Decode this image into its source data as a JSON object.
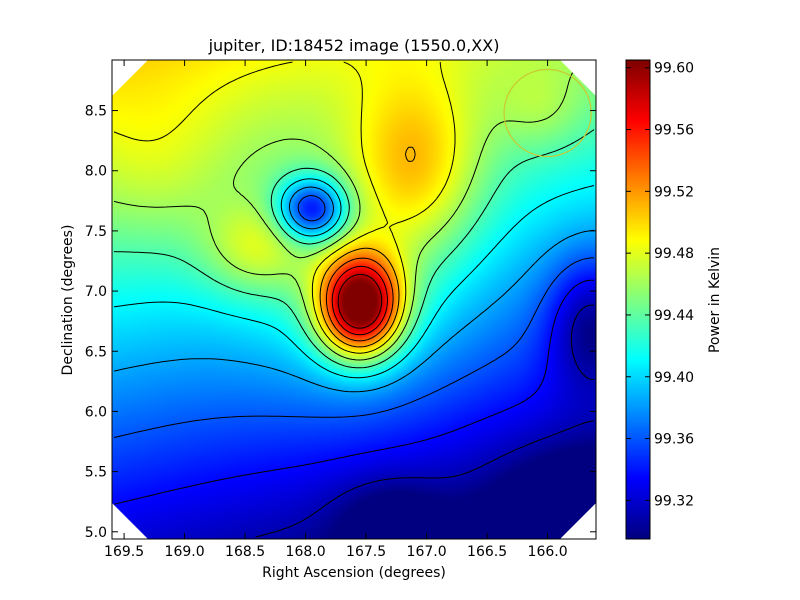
{
  "chart_data": {
    "type": "heatmap",
    "title": "jupiter, ID:18452 image (1550.0,XX)",
    "xlabel": "Right Ascension (degrees)",
    "ylabel": "Declination (degrees)",
    "xlim": [
      169.6,
      165.6
    ],
    "ylim": [
      4.94,
      8.92
    ],
    "x_ticks": [
      169.5,
      169.0,
      168.5,
      168.0,
      167.5,
      167.0,
      166.5,
      166.0
    ],
    "x_tick_labels": [
      "169.5",
      "169.0",
      "168.5",
      "168.0",
      "167.5",
      "167.0",
      "166.5",
      "166.0"
    ],
    "y_ticks": [
      5.0,
      5.5,
      6.0,
      6.5,
      7.0,
      7.5,
      8.0,
      8.5
    ],
    "y_tick_labels": [
      "5.0",
      "5.5",
      "6.0",
      "6.5",
      "7.0",
      "7.5",
      "8.0",
      "8.5"
    ],
    "colormap": "jet",
    "colorbar": {
      "label": "Power in Kelvin",
      "range": [
        99.295,
        99.605
      ],
      "ticks": [
        99.32,
        99.36,
        99.4,
        99.44,
        99.48,
        99.52,
        99.56,
        99.6
      ],
      "tick_labels": [
        "99.32",
        "99.36",
        "99.40",
        "99.44",
        "99.48",
        "99.52",
        "99.56",
        "99.60"
      ]
    },
    "features": [
      {
        "kind": "peak",
        "ra": 167.55,
        "dec": 6.88,
        "value": 99.598
      },
      {
        "kind": "local_minimum",
        "ra": 167.95,
        "dec": 7.68,
        "value": 99.37
      },
      {
        "kind": "broad_high",
        "ra": 167.1,
        "dec": 8.1,
        "value": 99.48
      },
      {
        "kind": "broad_high",
        "ra": 168.4,
        "dec": 7.4,
        "value": 99.48
      },
      {
        "kind": "low_region",
        "ra": 165.7,
        "dec": 6.75,
        "value": 99.31
      },
      {
        "kind": "low_region",
        "ra": 165.8,
        "dec": 5.1,
        "value": 99.3
      },
      {
        "kind": "low_region",
        "ra": 169.4,
        "dec": 5.0,
        "value": 99.35
      }
    ],
    "beam_circle": {
      "ra": 166.0,
      "dec": 8.48,
      "radius_deg": 0.36,
      "color": "#c8c832"
    },
    "contour_color": "#000000",
    "grid": false
  }
}
